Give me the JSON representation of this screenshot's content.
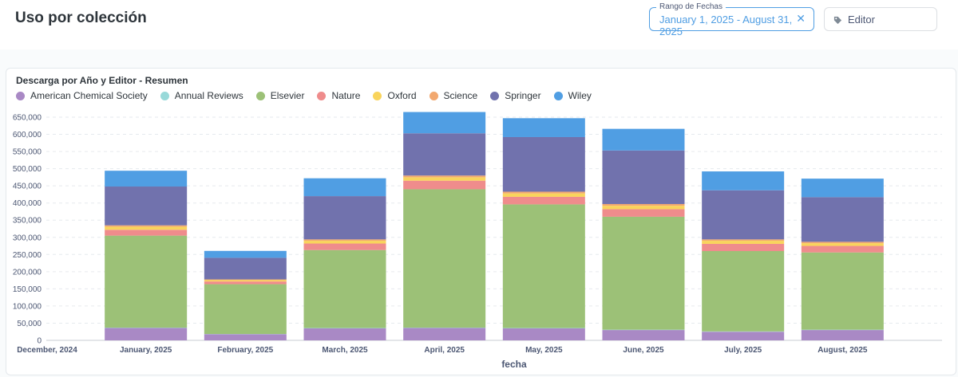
{
  "header": {
    "title": "Uso por colección",
    "date_filter": {
      "label": "Rango de Fechas",
      "value": "January 1, 2025 - August 31, 2025",
      "clear": "✕"
    },
    "editor_filter": {
      "label": "Editor"
    }
  },
  "card": {
    "title": "Descarga por Año y Editor - Resumen"
  },
  "colors": {
    "American Chemical Society": "#a989c5",
    "Annual Reviews": "#98d9d9",
    "Elsevier": "#9cc177",
    "Nature": "#ef8c8c",
    "Oxford": "#f9d45c",
    "Science": "#f2a86f",
    "Springer": "#7172ad",
    "Wiley": "#509ee3"
  },
  "chart_data": {
    "type": "bar",
    "stacked": true,
    "title": "Descarga por Año y Editor - Resumen",
    "xlabel": "fecha",
    "ylabel": "",
    "ylim": [
      0,
      650000
    ],
    "yticks": [
      0,
      50000,
      100000,
      150000,
      200000,
      250000,
      300000,
      350000,
      400000,
      450000,
      500000,
      550000,
      600000,
      650000
    ],
    "ytick_labels": [
      "0",
      "50,000",
      "100,000",
      "150,000",
      "200,000",
      "250,000",
      "300,000",
      "350,000",
      "400,000",
      "450,000",
      "500,000",
      "550,000",
      "600,000",
      "650,000"
    ],
    "x_start_label": "December, 2024",
    "categories": [
      "January, 2025",
      "February, 2025",
      "March, 2025",
      "April, 2025",
      "May, 2025",
      "June, 2025",
      "July, 2025",
      "August, 2025"
    ],
    "series": [
      {
        "name": "American Chemical Society",
        "values": [
          36000,
          18000,
          35000,
          36000,
          35000,
          30000,
          25000,
          30000
        ]
      },
      {
        "name": "Annual Reviews",
        "values": [
          1000,
          500,
          1000,
          1000,
          1000,
          1000,
          1000,
          1000
        ]
      },
      {
        "name": "Elsevier",
        "values": [
          268000,
          145000,
          227000,
          403000,
          360000,
          329000,
          234000,
          225000
        ]
      },
      {
        "name": "Nature",
        "values": [
          17000,
          8000,
          19000,
          25000,
          22000,
          22000,
          21000,
          19000
        ]
      },
      {
        "name": "Oxford",
        "values": [
          9000,
          4000,
          8000,
          10000,
          10000,
          10000,
          9000,
          8000
        ]
      },
      {
        "name": "Science",
        "values": [
          4000,
          2000,
          4000,
          5000,
          5000,
          5000,
          4000,
          4000
        ]
      },
      {
        "name": "Springer",
        "values": [
          113000,
          63000,
          126000,
          123000,
          159000,
          156000,
          143000,
          130000
        ]
      },
      {
        "name": "Wiley",
        "values": [
          46000,
          20000,
          52000,
          62000,
          55000,
          63000,
          55000,
          54000
        ]
      }
    ]
  }
}
